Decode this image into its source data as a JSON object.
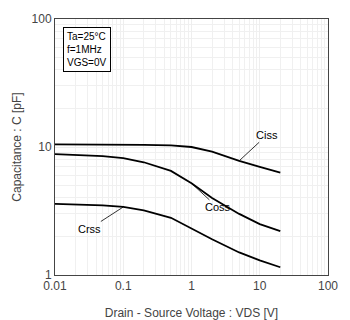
{
  "chart_data": {
    "type": "line",
    "log": true,
    "xlabel": "Drain - Source Voltage : VDS [V]",
    "ylabel": "Capacitance : C [pF]",
    "annotations": [
      "Ta=25°C\nf=1MHz\nVGS=0V"
    ],
    "color": "#000000",
    "grid": true,
    "xlim": [
      0.01,
      100
    ],
    "ylim": [
      1,
      100
    ],
    "xticks": [
      0.01,
      0.1,
      1,
      10,
      100
    ],
    "yticks": [
      1,
      10,
      100
    ],
    "x": [
      0.01,
      0.05,
      0.1,
      0.2,
      0.5,
      1.0,
      2.0,
      5.0,
      10.0,
      20.0
    ],
    "series": [
      {
        "name": "Ciss",
        "values": [
          10.5,
          10.5,
          10.5,
          10.4,
          10.3,
          10.0,
          9.2,
          7.8,
          7.0,
          6.3
        ]
      },
      {
        "name": "Coss",
        "values": [
          8.8,
          8.5,
          8.2,
          7.6,
          6.5,
          5.2,
          4.0,
          3.0,
          2.5,
          2.2
        ]
      },
      {
        "name": "Crss",
        "values": [
          3.6,
          3.5,
          3.4,
          3.2,
          2.8,
          2.3,
          1.9,
          1.5,
          1.3,
          1.15
        ]
      }
    ]
  }
}
